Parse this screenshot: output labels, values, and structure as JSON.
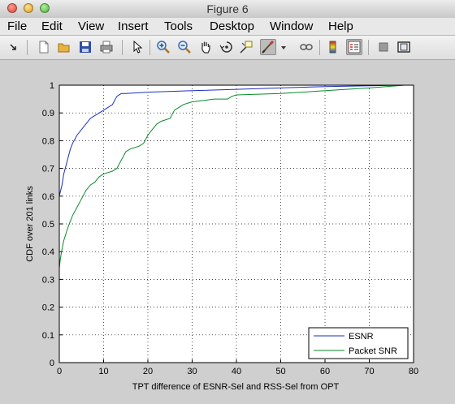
{
  "window": {
    "title": "Figure 6"
  },
  "menu": {
    "items": [
      "File",
      "Edit",
      "View",
      "Insert",
      "Tools",
      "Desktop",
      "Window",
      "Help"
    ]
  },
  "toolbar": {
    "buttons": [
      "arrow-menu-icon",
      "new-figure-icon",
      "open-file-icon",
      "save-icon",
      "print-icon",
      "select-pointer-icon",
      "zoom-in-icon",
      "zoom-out-icon",
      "pan-hand-icon",
      "rotate-3d-icon",
      "data-cursor-icon",
      "brush-icon",
      "brush-dropdown-icon",
      "link-plot-icon",
      "colorbar-icon",
      "legend-icon",
      "hide-plot-tools-icon",
      "show-plot-tools-icon"
    ]
  },
  "colors": {
    "esnr": "#1a2fc4",
    "packet_snr": "#0a8a2a"
  },
  "chart_data": {
    "type": "line",
    "title": "",
    "xlabel": "TPT difference of ESNR-Sel and RSS-Sel from OPT",
    "ylabel": "CDF over 201 links",
    "xlim": [
      0,
      80
    ],
    "ylim": [
      0,
      1
    ],
    "xticks": [
      "0",
      "10",
      "20",
      "30",
      "40",
      "50",
      "60",
      "70",
      "80"
    ],
    "yticks": [
      "0",
      "0.1",
      "0.2",
      "0.3",
      "0.4",
      "0.5",
      "0.6",
      "0.7",
      "0.8",
      "0.9",
      "1"
    ],
    "grid": true,
    "legend_position": "bottom-right",
    "series": [
      {
        "name": "ESNR",
        "color": "#1a2fc4",
        "x": [
          0,
          0,
          0.3,
          0.6,
          1,
          1.5,
          2,
          2.5,
          3,
          4,
          5,
          6,
          7,
          8,
          9,
          10,
          11,
          12,
          13,
          14,
          15,
          20,
          30,
          40,
          50,
          60,
          70,
          78
        ],
        "y": [
          0,
          0.6,
          0.62,
          0.64,
          0.68,
          0.71,
          0.74,
          0.77,
          0.79,
          0.82,
          0.84,
          0.86,
          0.88,
          0.89,
          0.9,
          0.91,
          0.92,
          0.93,
          0.96,
          0.97,
          0.97,
          0.975,
          0.98,
          0.985,
          0.99,
          0.995,
          0.998,
          1
        ]
      },
      {
        "name": "Packet SNR",
        "color": "#0a8a2a",
        "x": [
          0,
          0,
          0.2,
          0.5,
          1,
          2,
          3,
          4,
          5,
          6,
          7,
          8,
          9,
          10,
          11,
          12,
          13,
          14,
          15,
          16,
          18,
          19,
          20,
          21,
          22,
          23,
          25,
          26,
          27,
          28,
          30,
          35,
          38,
          39,
          40,
          50,
          60,
          70,
          78
        ],
        "y": [
          0,
          0.34,
          0.37,
          0.4,
          0.44,
          0.49,
          0.53,
          0.56,
          0.59,
          0.62,
          0.64,
          0.65,
          0.67,
          0.68,
          0.685,
          0.69,
          0.7,
          0.73,
          0.76,
          0.77,
          0.78,
          0.79,
          0.82,
          0.84,
          0.86,
          0.87,
          0.88,
          0.91,
          0.92,
          0.93,
          0.94,
          0.95,
          0.95,
          0.96,
          0.965,
          0.97,
          0.98,
          0.99,
          1
        ]
      }
    ]
  }
}
